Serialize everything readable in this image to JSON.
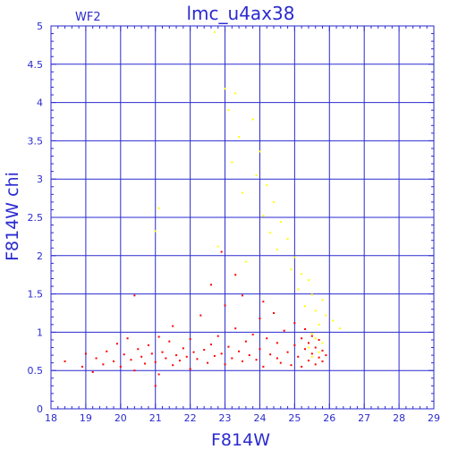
{
  "chart_data": {
    "type": "scatter",
    "title": "lmc_u4ax38",
    "chip_label": "WF2",
    "xlabel": "F814W",
    "ylabel": "F814W  chi",
    "xlim": [
      18,
      29
    ],
    "ylim": [
      0,
      5
    ],
    "x_ticks": [
      18,
      19,
      20,
      21,
      22,
      23,
      24,
      25,
      26,
      27,
      28,
      29
    ],
    "y_ticks": [
      0,
      0.5,
      1,
      1.5,
      2,
      2.5,
      3,
      3.5,
      4,
      4.5,
      5
    ],
    "grid": true,
    "colors": {
      "axis": "#2a2ad0",
      "grid": "#2a2ad0"
    },
    "series": [
      {
        "color": "#ff0000",
        "points": [
          [
            18.4,
            0.62
          ],
          [
            18.9,
            0.55
          ],
          [
            19.0,
            0.72
          ],
          [
            19.2,
            0.48
          ],
          [
            19.3,
            0.66
          ],
          [
            19.5,
            0.58
          ],
          [
            19.6,
            0.75
          ],
          [
            19.8,
            0.62
          ],
          [
            19.9,
            0.85
          ],
          [
            20.0,
            0.55
          ],
          [
            20.1,
            0.71
          ],
          [
            20.2,
            0.92
          ],
          [
            20.3,
            0.64
          ],
          [
            20.4,
            0.5
          ],
          [
            20.5,
            0.78
          ],
          [
            20.6,
            0.68
          ],
          [
            20.7,
            0.59
          ],
          [
            20.8,
            0.83
          ],
          [
            20.9,
            0.72
          ],
          [
            21.0,
            0.61
          ],
          [
            21.1,
            0.94
          ],
          [
            21.1,
            0.45
          ],
          [
            21.2,
            0.74
          ],
          [
            21.3,
            0.66
          ],
          [
            21.4,
            0.88
          ],
          [
            21.5,
            0.57
          ],
          [
            21.5,
            1.08
          ],
          [
            21.6,
            0.7
          ],
          [
            21.7,
            0.63
          ],
          [
            21.8,
            0.79
          ],
          [
            21.9,
            0.68
          ],
          [
            22.0,
            0.52
          ],
          [
            22.0,
            0.91
          ],
          [
            22.1,
            0.74
          ],
          [
            22.2,
            0.65
          ],
          [
            22.3,
            1.22
          ],
          [
            22.4,
            0.77
          ],
          [
            22.5,
            0.6
          ],
          [
            22.6,
            0.84
          ],
          [
            22.7,
            0.69
          ],
          [
            22.8,
            0.95
          ],
          [
            22.9,
            0.72
          ],
          [
            23.0,
            0.58
          ],
          [
            23.0,
            1.35
          ],
          [
            23.1,
            0.81
          ],
          [
            23.2,
            0.66
          ],
          [
            23.3,
            1.05
          ],
          [
            23.4,
            0.75
          ],
          [
            23.5,
            0.62
          ],
          [
            23.5,
            1.48
          ],
          [
            23.6,
            0.88
          ],
          [
            23.7,
            0.7
          ],
          [
            23.8,
            0.97
          ],
          [
            23.9,
            0.64
          ],
          [
            24.0,
            1.18
          ],
          [
            24.0,
            0.78
          ],
          [
            24.1,
            0.55
          ],
          [
            24.2,
            0.92
          ],
          [
            24.3,
            0.71
          ],
          [
            24.4,
            1.25
          ],
          [
            24.5,
            0.66
          ],
          [
            24.5,
            0.86
          ],
          [
            24.6,
            0.6
          ],
          [
            24.7,
            1.02
          ],
          [
            24.8,
            0.74
          ],
          [
            24.9,
            0.57
          ],
          [
            25.0,
            0.83
          ],
          [
            25.0,
            1.12
          ],
          [
            25.1,
            0.68
          ],
          [
            25.2,
            0.92
          ],
          [
            25.2,
            0.55
          ],
          [
            25.3,
            0.78
          ],
          [
            25.3,
            1.04
          ],
          [
            25.4,
            0.63
          ],
          [
            25.4,
            0.86
          ],
          [
            25.5,
            0.72
          ],
          [
            25.5,
            0.95
          ],
          [
            25.6,
            0.58
          ],
          [
            25.6,
            0.8
          ],
          [
            25.7,
            0.67
          ],
          [
            25.7,
            0.9
          ],
          [
            25.8,
            0.62
          ],
          [
            25.8,
            0.76
          ],
          [
            25.9,
            0.7
          ],
          [
            21.0,
            0.3
          ],
          [
            22.6,
            1.62
          ],
          [
            23.3,
            1.75
          ],
          [
            24.1,
            1.4
          ],
          [
            20.4,
            1.48
          ],
          [
            22.9,
            2.05
          ]
        ]
      },
      {
        "color": "#ffff00",
        "points": [
          [
            22.7,
            4.92
          ],
          [
            23.0,
            4.18
          ],
          [
            23.3,
            4.12
          ],
          [
            23.1,
            3.9
          ],
          [
            23.8,
            3.78
          ],
          [
            23.4,
            3.55
          ],
          [
            24.0,
            3.36
          ],
          [
            23.2,
            3.22
          ],
          [
            23.9,
            3.05
          ],
          [
            24.2,
            2.92
          ],
          [
            23.5,
            2.82
          ],
          [
            24.4,
            2.7
          ],
          [
            24.1,
            2.52
          ],
          [
            24.6,
            2.44
          ],
          [
            24.3,
            2.3
          ],
          [
            24.8,
            2.22
          ],
          [
            24.5,
            2.08
          ],
          [
            25.0,
            1.98
          ],
          [
            24.9,
            1.82
          ],
          [
            25.2,
            1.76
          ],
          [
            25.4,
            1.68
          ],
          [
            25.1,
            1.56
          ],
          [
            25.5,
            1.49
          ],
          [
            25.8,
            1.42
          ],
          [
            25.3,
            1.34
          ],
          [
            25.6,
            1.28
          ],
          [
            25.9,
            1.22
          ],
          [
            26.1,
            1.15
          ],
          [
            25.7,
            1.1
          ],
          [
            26.3,
            1.05
          ],
          [
            25.5,
            0.98
          ],
          [
            25.6,
            0.92
          ],
          [
            25.8,
            0.86
          ],
          [
            25.4,
            0.8
          ],
          [
            25.7,
            0.74
          ],
          [
            25.5,
            0.68
          ],
          [
            21.0,
            2.32
          ],
          [
            21.1,
            2.62
          ],
          [
            22.8,
            2.12
          ],
          [
            23.6,
            1.92
          ]
        ]
      }
    ]
  }
}
